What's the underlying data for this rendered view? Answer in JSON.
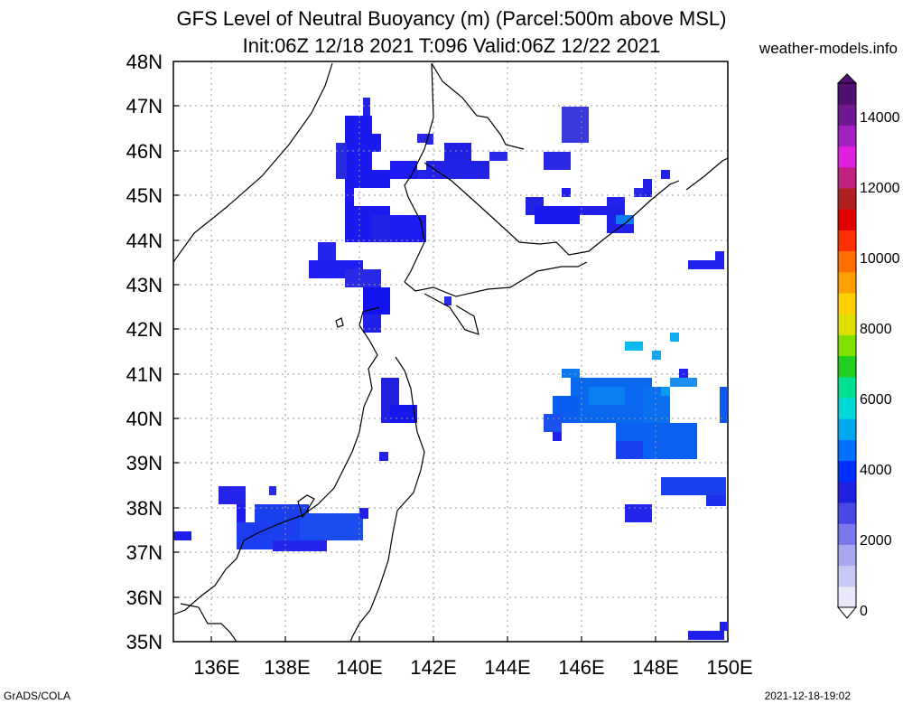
{
  "title": {
    "line1": "GFS Level of Neutral Buoyancy (m) (Parcel:500m above MSL)",
    "line2": "Init:06Z 12/18 2021 T:096 Valid:06Z 12/22 2021"
  },
  "site": "weather-models.info",
  "map": {
    "lat_labels": [
      "48N",
      "47N",
      "46N",
      "45N",
      "44N",
      "43N",
      "42N",
      "41N",
      "40N",
      "39N",
      "38N",
      "37N",
      "36N",
      "35N"
    ],
    "lon_labels": [
      "136E",
      "138E",
      "140E",
      "142E",
      "144E",
      "146E",
      "148E",
      "150E"
    ],
    "lat_range": [
      35,
      48
    ],
    "lon_range": [
      135,
      150
    ]
  },
  "colorbar": {
    "labels": [
      "14000",
      "12000",
      "10000",
      "8000",
      "6000",
      "4000",
      "2000",
      "0"
    ],
    "range": [
      0,
      15000
    ],
    "colors": [
      "#e8e8fa",
      "#c8c8f5",
      "#a8a8f0",
      "#7878ea",
      "#4848e6",
      "#2020e0",
      "#0030ff",
      "#0070ff",
      "#00a8f0",
      "#00d8d8",
      "#00e090",
      "#20d020",
      "#80e000",
      "#e0e000",
      "#ffd000",
      "#ffa000",
      "#ff7000",
      "#ff3000",
      "#e00000",
      "#b02020",
      "#c02080",
      "#e020e0",
      "#a020c0",
      "#701890",
      "#501070"
    ]
  },
  "footer": {
    "left": "GrADS/COLA",
    "right": "2021-12-18-19:02"
  }
}
